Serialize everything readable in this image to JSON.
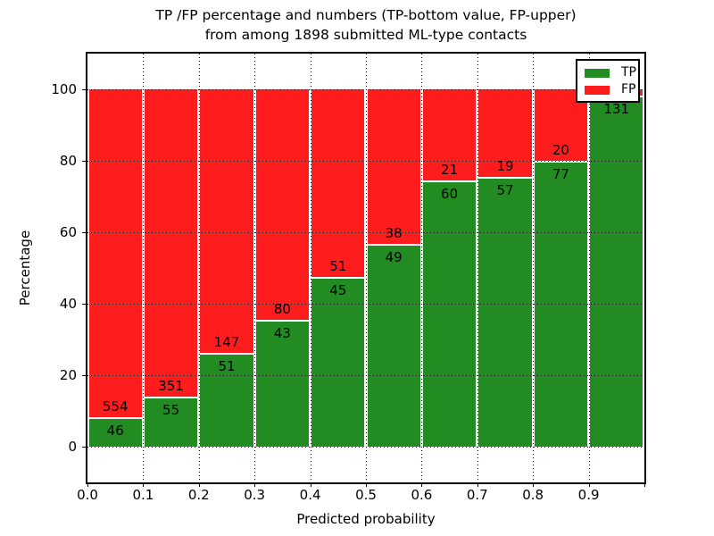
{
  "title": {
    "line1": "TP /FP percentage and numbers (TP-bottom value, FP-upper)",
    "line2": "from among 1898 submitted ML-type contacts"
  },
  "axes": {
    "xlabel": "Predicted probability",
    "ylabel": "Percentage",
    "xtick_labels": [
      "0.0",
      "0.1",
      "0.2",
      "0.3",
      "0.4",
      "0.5",
      "0.6",
      "0.7",
      "0.8",
      "0.9"
    ],
    "ytick_labels": [
      "0",
      "20",
      "40",
      "60",
      "80",
      "100"
    ],
    "ytick_values": [
      0,
      20,
      40,
      60,
      80,
      100
    ],
    "xlim": [
      0.0,
      1.0
    ],
    "ylim": [
      -10,
      110
    ],
    "grid_style": "dotted"
  },
  "legend": {
    "position": "upper right",
    "items": [
      {
        "label": "TP",
        "color": "#228b22"
      },
      {
        "label": "FP",
        "color": "#ff1c1c"
      }
    ]
  },
  "chart_data": {
    "type": "bar",
    "stacked": true,
    "title": "TP /FP percentage and numbers (TP-bottom value, FP-upper) from among 1898 submitted ML-type contacts",
    "xlabel": "Predicted probability",
    "ylabel": "Percentage",
    "total_contacts": 1898,
    "bin_edges": [
      0.0,
      0.1,
      0.2,
      0.3,
      0.4,
      0.5,
      0.6,
      0.7,
      0.8,
      0.9,
      1.0
    ],
    "ylim": [
      -10,
      110
    ],
    "grid": true,
    "legend_position": "upper right",
    "series": [
      {
        "name": "TP",
        "color": "#228b22",
        "counts": [
          46,
          55,
          51,
          43,
          45,
          49,
          60,
          57,
          77,
          131
        ],
        "pct": [
          7.7,
          13.5,
          25.8,
          35.0,
          46.9,
          56.3,
          74.1,
          75.0,
          79.4,
          97.8
        ]
      },
      {
        "name": "FP",
        "color": "#ff1c1c",
        "counts": [
          554,
          351,
          147,
          80,
          51,
          38,
          21,
          19,
          20,
          null
        ],
        "pct": [
          92.3,
          86.5,
          74.2,
          65.0,
          53.1,
          43.7,
          25.9,
          25.0,
          20.6,
          2.2
        ]
      }
    ]
  }
}
